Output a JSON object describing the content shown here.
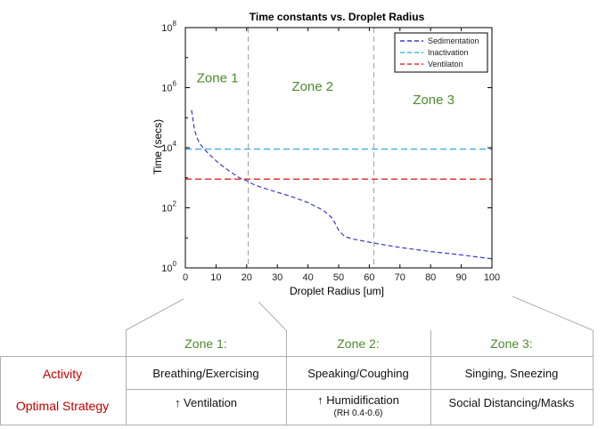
{
  "chart_data": {
    "type": "line",
    "title": "Time constants vs. Droplet Radius",
    "xlabel": "Droplet Radius [um]",
    "ylabel": "Time (secs)",
    "xlim": [
      0,
      100
    ],
    "ylim": [
      1,
      100000000
    ],
    "yscale": "log",
    "xticks": [
      0,
      10,
      20,
      30,
      40,
      50,
      60,
      70,
      80,
      90,
      100
    ],
    "yticks": [
      {
        "value": 1,
        "base": "10",
        "exp": "0"
      },
      {
        "value": 100,
        "base": "10",
        "exp": "2"
      },
      {
        "value": 10000,
        "base": "10",
        "exp": "4"
      },
      {
        "value": 1000000,
        "base": "10",
        "exp": "6"
      },
      {
        "value": 100000000,
        "base": "10",
        "exp": "8"
      }
    ],
    "legend_position": "top-right",
    "series": [
      {
        "name": "Sedimentation",
        "color": "#3a3ad0",
        "x": [
          2,
          3,
          4,
          5,
          6,
          8,
          10,
          12,
          15,
          18,
          20,
          22,
          25,
          30,
          35,
          40,
          45,
          48,
          50,
          52,
          55,
          60,
          65,
          70,
          80,
          90,
          100
        ],
        "y": [
          180000,
          38000,
          19000,
          12500,
          9200,
          5800,
          3700,
          2500,
          1500,
          950,
          800,
          620,
          470,
          330,
          230,
          150,
          82,
          45,
          18,
          11,
          9,
          7.2,
          5.8,
          4.8,
          3.5,
          2.7,
          2.0
        ]
      },
      {
        "name": "Inactivation",
        "color": "#46b4e6",
        "x": [
          0,
          100
        ],
        "y": [
          9000,
          9000
        ]
      },
      {
        "name": "Ventilaton",
        "color": "#e83434",
        "x": [
          0,
          100
        ],
        "y": [
          900,
          900
        ]
      }
    ],
    "zone_dividers": [
      20.5,
      61.5
    ],
    "zone_labels": [
      {
        "text": "Zone 1",
        "x": 10.5,
        "y": 1500000
      },
      {
        "text": "Zone 2",
        "x": 41.5,
        "y": 800000
      },
      {
        "text": "Zone 3",
        "x": 81,
        "y": 280000
      }
    ]
  },
  "table": {
    "zones": [
      "Zone 1:",
      "Zone 2:",
      "Zone 3:"
    ],
    "rows": [
      {
        "label": "Activity",
        "cells": [
          "Breathing/Exercising",
          "Speaking/Coughing",
          "Singing, Sneezing"
        ]
      },
      {
        "label": "Optimal Strategy",
        "cells": [
          "↑ Ventilation",
          "↑ Humidification",
          "Social Distancing/Masks"
        ],
        "note": "(RH 0.4-0.6)"
      }
    ]
  },
  "colors": {
    "zone_text": "#4d8a2e",
    "row_label": "#c00000",
    "grid_line": "#b0b0b0"
  }
}
